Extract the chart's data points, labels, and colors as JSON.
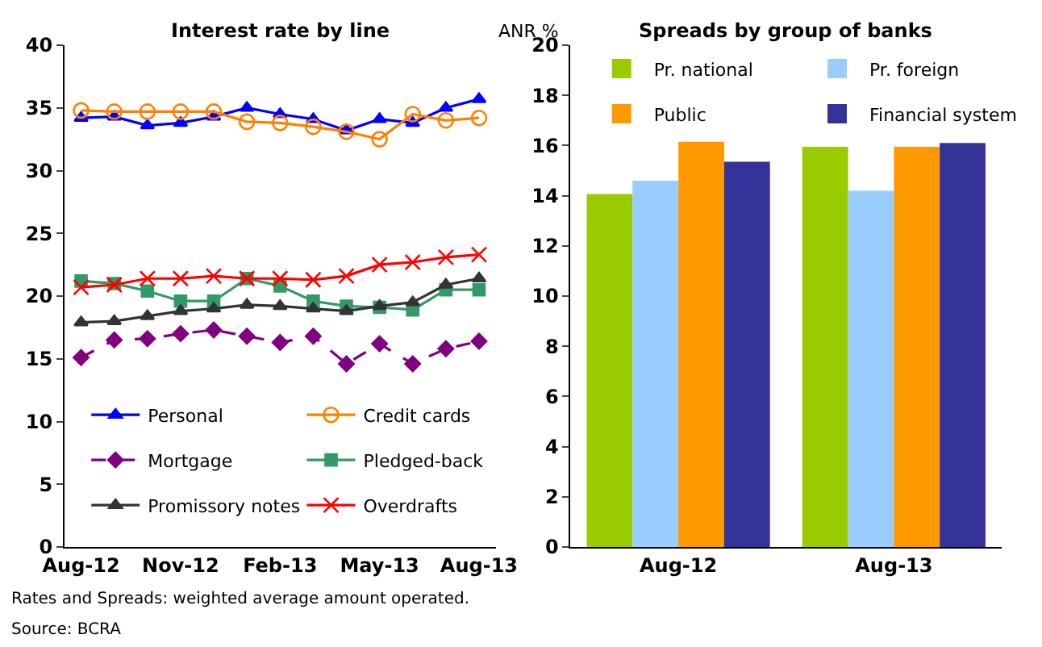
{
  "chart_data": [
    {
      "type": "line",
      "title": "Interest rate by line",
      "categories": [
        "Aug-12",
        null,
        null,
        "Nov-12",
        null,
        null,
        "Feb-13",
        null,
        null,
        "May-13",
        null,
        null,
        "Aug-13"
      ],
      "ylim": [
        0,
        40
      ],
      "yticks": [
        0,
        5,
        10,
        15,
        20,
        25,
        30,
        35,
        40
      ],
      "legend": "bottom",
      "series": [
        {
          "name": "Personal",
          "color": "#0000ff",
          "marker": "triangle",
          "line_style": "solid",
          "values": [
            34.2,
            34.3,
            33.6,
            33.8,
            34.3,
            35.0,
            34.5,
            34.1,
            33.2,
            34.1,
            33.8,
            35.0,
            35.7
          ]
        },
        {
          "name": "Credit cards",
          "color": "#ff8000",
          "marker": "circle",
          "line_style": "solid",
          "values": [
            34.8,
            34.7,
            34.7,
            34.7,
            34.7,
            33.9,
            33.8,
            33.5,
            33.1,
            32.5,
            34.5,
            34.0,
            34.2
          ]
        },
        {
          "name": "Mortgage",
          "color": "#800080",
          "marker": "diamond",
          "line_style": "dashed",
          "values": [
            15.1,
            16.5,
            16.6,
            17.0,
            17.3,
            16.8,
            16.3,
            16.8,
            14.6,
            16.2,
            14.6,
            15.8,
            16.4
          ]
        },
        {
          "name": "Pledged-back",
          "color": "#339966",
          "marker": "square",
          "line_style": "solid",
          "values": [
            21.2,
            21.0,
            20.4,
            19.6,
            19.6,
            21.4,
            20.8,
            19.6,
            19.2,
            19.1,
            18.9,
            20.5,
            20.5
          ]
        },
        {
          "name": "Promissory notes",
          "color": "#333333",
          "marker": "triangle",
          "line_style": "solid",
          "values": [
            17.9,
            18.0,
            18.4,
            18.8,
            19.0,
            19.3,
            19.2,
            19.0,
            18.8,
            19.2,
            19.5,
            20.9,
            21.4
          ]
        },
        {
          "name": "Overdrafts",
          "color": "#ff0000",
          "marker": "cross",
          "line_style": "solid",
          "values": [
            20.7,
            20.9,
            21.4,
            21.4,
            21.6,
            21.4,
            21.4,
            21.3,
            21.6,
            22.5,
            22.7,
            23.1,
            23.3
          ]
        }
      ],
      "annotations": [
        "Rates and Spreads: weighted average amount operated.",
        "Source: BCRA"
      ]
    },
    {
      "type": "bar",
      "title": "Spreads by group of banks",
      "ylabel": "ANR %",
      "categories": [
        "Aug-12",
        "Aug-13"
      ],
      "ylim": [
        0,
        20
      ],
      "yticks": [
        0,
        2,
        4,
        6,
        8,
        10,
        12,
        14,
        16,
        18,
        20
      ],
      "legend": "top",
      "series": [
        {
          "name": "Pr. national",
          "color": "#99cc00",
          "values": [
            14.07,
            15.95
          ]
        },
        {
          "name": "Pr. foreign",
          "color": "#99ccff",
          "values": [
            14.6,
            14.2
          ]
        },
        {
          "name": "Public",
          "color": "#ff9900",
          "values": [
            16.15,
            15.95
          ]
        },
        {
          "name": "Financial system",
          "color": "#333399",
          "values": [
            15.35,
            16.1
          ]
        }
      ]
    }
  ]
}
